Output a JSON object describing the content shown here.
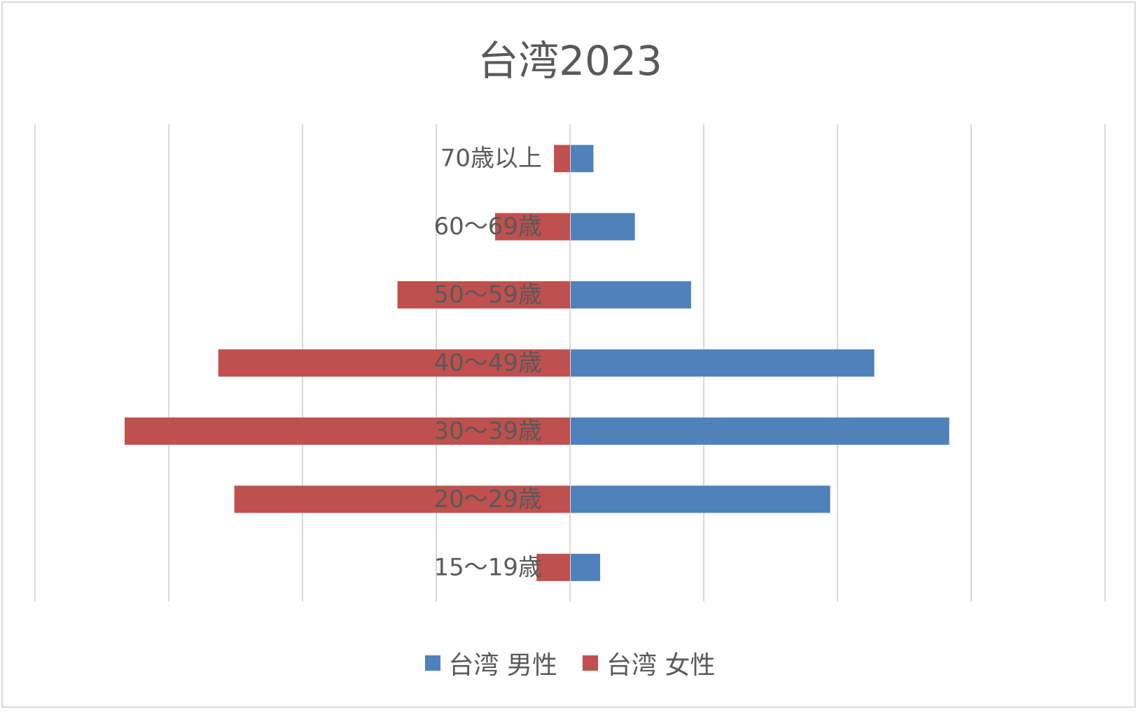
{
  "chart_data": {
    "type": "bar",
    "orientation": "horizontal",
    "layout": "population-pyramid",
    "title": "台湾2023",
    "categories": [
      "15〜19歳",
      "20〜29歳",
      "30〜39歳",
      "40〜49歳",
      "50〜59歳",
      "60〜69歳",
      "70歳以上"
    ],
    "series": [
      {
        "name": "台湾 男性",
        "color": "#4f81bd",
        "values": [
          2.2,
          19.4,
          28.3,
          22.7,
          9.0,
          4.8,
          1.7
        ]
      },
      {
        "name": "台湾 女性",
        "color": "#c0504d",
        "values": [
          2.5,
          25.1,
          33.3,
          26.3,
          12.9,
          5.6,
          1.2
        ]
      }
    ],
    "xlim": [
      -40,
      40
    ],
    "grid_step": 10,
    "grid": true,
    "tick_labels_shown": false,
    "legend_position": "bottom"
  }
}
